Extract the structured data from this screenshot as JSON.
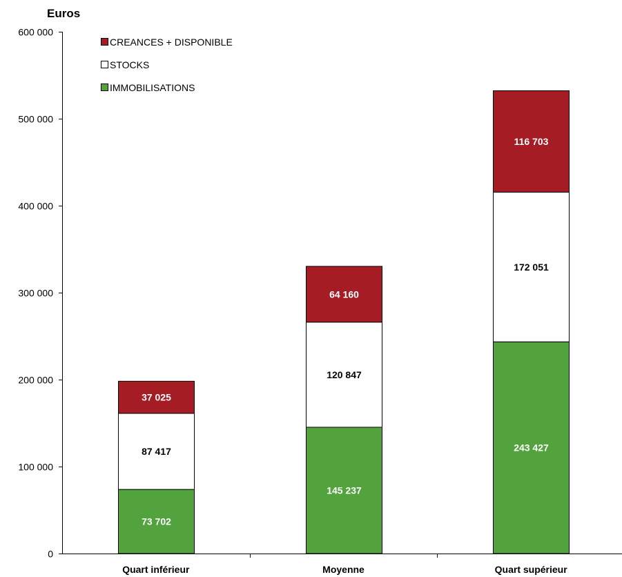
{
  "chart_data": {
    "type": "bar",
    "stacked": true,
    "y_unit_label": "Euros",
    "categories": [
      "Quart inférieur",
      "Moyenne",
      "Quart supérieur"
    ],
    "series": [
      {
        "name": "IMMOBILISATIONS",
        "color": "#52a33e",
        "label_color": "#ffffff",
        "values": [
          73702,
          145237,
          243427
        ],
        "labels": [
          "73 702",
          "145 237",
          "243 427"
        ]
      },
      {
        "name": "STOCKS",
        "color": "#ffffff",
        "label_color": "#000000",
        "values": [
          87417,
          120847,
          172051
        ],
        "labels": [
          "87 417",
          "120 847",
          "172 051"
        ]
      },
      {
        "name": "CREANCES + DISPONIBLE",
        "color": "#a51c24",
        "label_color": "#ffffff",
        "values": [
          37025,
          64160,
          116703
        ],
        "labels": [
          "37 025",
          "64 160",
          "116 703"
        ]
      }
    ],
    "legend_order": [
      "CREANCES + DISPONIBLE",
      "STOCKS",
      "IMMOBILISATIONS"
    ],
    "legend_position": "top-left",
    "ylim": [
      0,
      600000
    ],
    "y_ticks": [
      0,
      100000,
      200000,
      300000,
      400000,
      500000,
      600000
    ],
    "y_tick_labels": [
      "0",
      "100 000",
      "200 000",
      "300 000",
      "400 000",
      "500 000",
      "600 000"
    ],
    "grid": false
  }
}
